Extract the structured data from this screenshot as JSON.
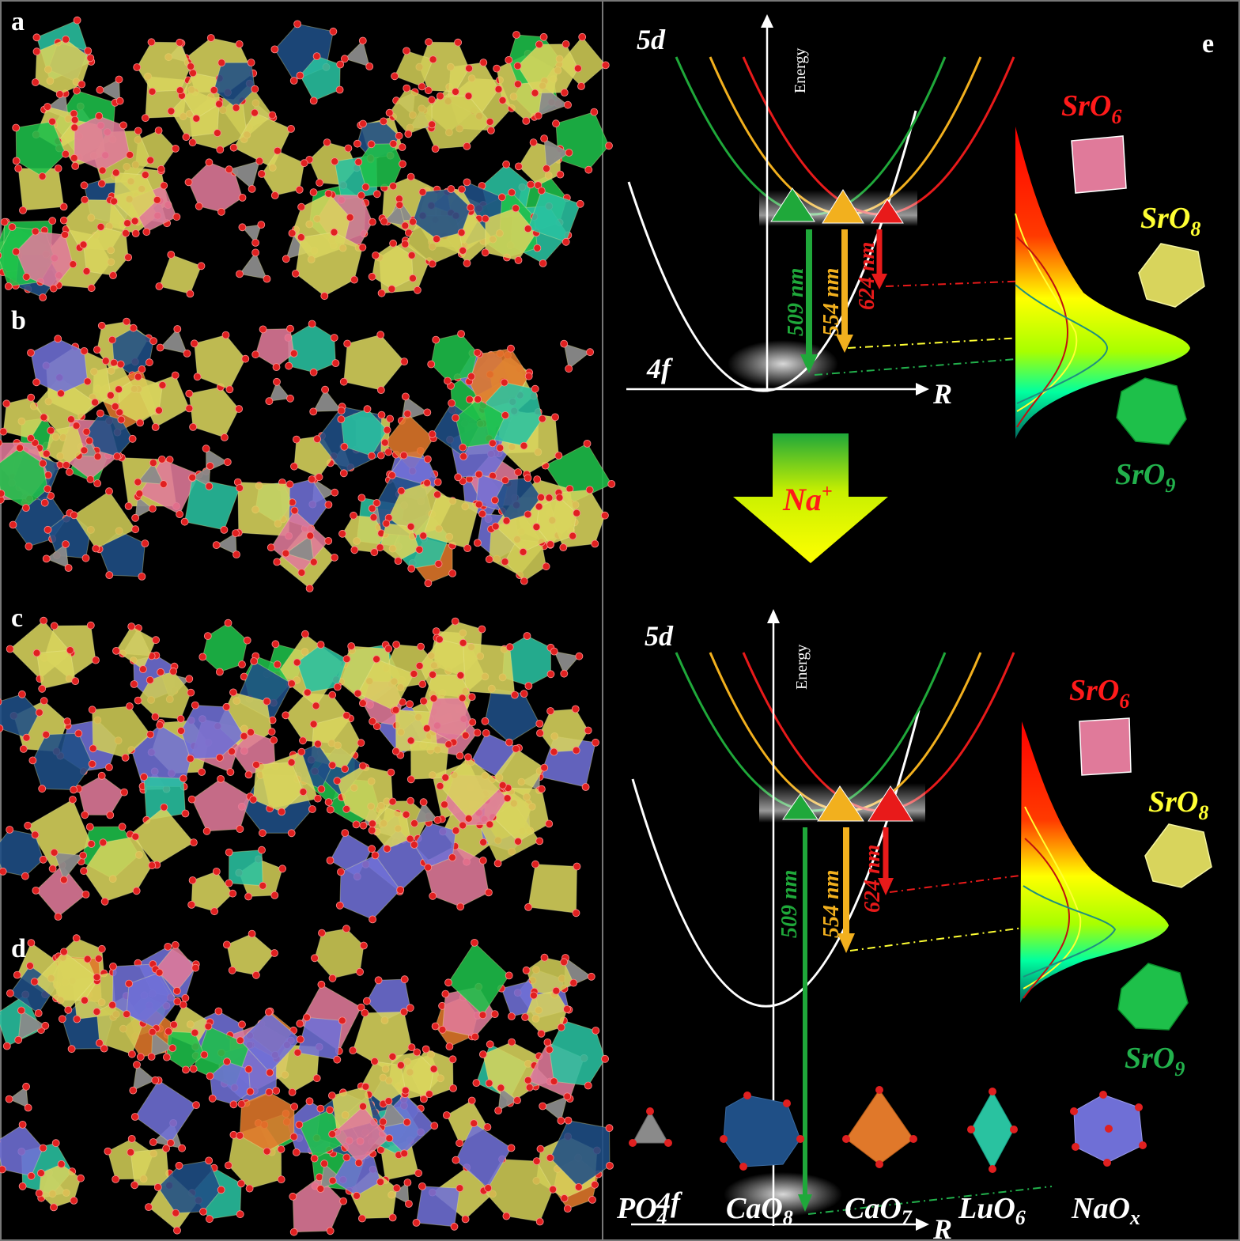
{
  "panels": {
    "a": "a",
    "b": "b",
    "c": "c",
    "d": "d",
    "e": "e"
  },
  "diagram_top": {
    "level_5d": "5d",
    "level_4f": "4f",
    "axis_energy": "Energy",
    "axis_r": "R",
    "wl_green": "509 nm",
    "wl_yellow": "554 nm",
    "wl_red": "624 nm",
    "site_sro6": "SrO",
    "site_sro6_sub": "6",
    "site_sro8": "SrO",
    "site_sro8_sub": "8",
    "site_sro9": "SrO",
    "site_sro9_sub": "9"
  },
  "arrow": {
    "label": "Na",
    "sup": "+"
  },
  "diagram_bottom": {
    "level_5d": "5d",
    "level_4f": "4f",
    "axis_energy": "Energy",
    "axis_r": "R",
    "wl_green": "509 nm",
    "wl_yellow": "554 nm",
    "wl_red": "624 nm",
    "site_sro6": "SrO",
    "site_sro6_sub": "6",
    "site_sro8": "SrO",
    "site_sro8_sub": "8",
    "site_sro9": "SrO",
    "site_sro9_sub": "9"
  },
  "legend": [
    {
      "main": "PO",
      "sub": "4",
      "color": "#8a8a8a",
      "icon": "tetrahedron-icon"
    },
    {
      "main": "CaO",
      "sub": "8",
      "color": "#1f4f86",
      "icon": "polyhedron-icon"
    },
    {
      "main": "CaO",
      "sub": "7",
      "color": "#e0782a",
      "icon": "polyhedron-icon"
    },
    {
      "main": "LuO",
      "sub": "6",
      "color": "#29c2a0",
      "icon": "octahedron-icon"
    },
    {
      "main": "NaO",
      "sub": "x",
      "color": "#6f6fd6",
      "icon": "polyhedron-icon"
    }
  ],
  "colors": {
    "green": "#1fa83a",
    "yellow": "#f2b01e",
    "red": "#e81a1a",
    "white": "#ffffff",
    "label_red": "#ff1a1a",
    "label_yellow": "#ffff33",
    "label_green": "#22b14c"
  }
}
